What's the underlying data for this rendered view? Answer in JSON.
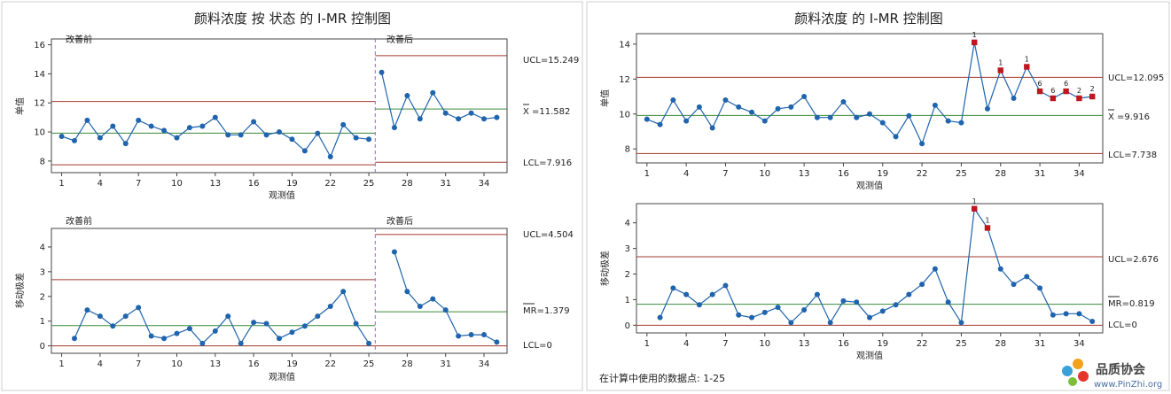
{
  "colors": {
    "series": "#1f64ad",
    "center": "#3a8a3a",
    "limit": "#a33a2e",
    "out": "#c0161c",
    "phase_divider": "#9966cc"
  },
  "left_figure": {
    "title": "颜料浓度 按 状态 的 I-MR 控制图",
    "phase_labels": [
      "改善前",
      "改善后"
    ],
    "x_ticks": [
      "1",
      "4",
      "7",
      "10",
      "13",
      "16",
      "19",
      "22",
      "25",
      "28",
      "31",
      "34"
    ],
    "xlabel": "观测值",
    "i_chart": {
      "ylabel": "单值",
      "y_ticks": [
        "8",
        "10",
        "12",
        "14",
        "16"
      ],
      "ucl_label": "UCL=15.249",
      "center_label": "X =11.582",
      "lcl_label": "LCL=7.916"
    },
    "mr_chart": {
      "ylabel": "移动极差",
      "y_ticks": [
        "0",
        "1",
        "2",
        "3",
        "4"
      ],
      "ucl_label": "UCL=4.504",
      "center_label": "MR=1.379",
      "lcl_label": "LCL=0"
    }
  },
  "right_figure": {
    "title": "颜料浓度 的 I-MR 控制图",
    "x_ticks": [
      "1",
      "4",
      "7",
      "10",
      "13",
      "16",
      "19",
      "22",
      "25",
      "28",
      "31",
      "34"
    ],
    "xlabel": "观测值",
    "i_chart": {
      "ylabel": "单值",
      "y_ticks": [
        "8",
        "10",
        "12",
        "14"
      ],
      "ucl_label": "UCL=12.095",
      "center_label": "X =9.916",
      "lcl_label": "LCL=7.738"
    },
    "mr_chart": {
      "ylabel": "移动极差",
      "y_ticks": [
        "0",
        "1",
        "2",
        "3",
        "4"
      ],
      "ucl_label": "UCL=2.676",
      "center_label": "MR=0.819",
      "lcl_label": "LCL=0"
    },
    "footnote": "在计算中使用的数据点: 1-25"
  },
  "watermark": {
    "text": "品质协会",
    "url": "www.PinZhi.org"
  },
  "chart_data": [
    {
      "type": "line",
      "title": "颜料浓度 按 状态 的 I-MR 控制图 — 单值",
      "xlabel": "观测值",
      "ylabel": "单值",
      "x": [
        1,
        2,
        3,
        4,
        5,
        6,
        7,
        8,
        9,
        10,
        11,
        12,
        13,
        14,
        15,
        16,
        17,
        18,
        19,
        20,
        21,
        22,
        23,
        24,
        25,
        26,
        27,
        28,
        29,
        30,
        31,
        32,
        33,
        34,
        35
      ],
      "values": [
        9.7,
        9.4,
        10.8,
        9.6,
        10.4,
        9.2,
        10.8,
        10.4,
        10.1,
        9.6,
        10.3,
        10.4,
        11.0,
        9.8,
        9.8,
        10.7,
        9.8,
        10.0,
        9.5,
        8.7,
        9.9,
        8.3,
        10.5,
        9.6,
        9.5,
        14.1,
        10.3,
        12.5,
        10.9,
        12.7,
        11.3,
        10.9,
        11.3,
        10.9,
        11.0
      ],
      "ylim": [
        7.2,
        16.4
      ],
      "phases": [
        {
          "name": "改善前",
          "from": 1,
          "to": 25,
          "ucl": 12.095,
          "center": 9.916,
          "lcl": 7.738
        },
        {
          "name": "改善后",
          "from": 26,
          "to": 35,
          "ucl": 15.249,
          "center": 11.582,
          "lcl": 7.916
        }
      ],
      "out_points": []
    },
    {
      "type": "line",
      "title": "颜料浓度 按 状态 的 I-MR 控制图 — 移动极差",
      "xlabel": "观测值",
      "ylabel": "移动极差",
      "x": [
        2,
        3,
        4,
        5,
        6,
        7,
        8,
        9,
        10,
        11,
        12,
        13,
        14,
        15,
        16,
        17,
        18,
        19,
        20,
        21,
        22,
        23,
        24,
        25,
        27,
        28,
        29,
        30,
        31,
        32,
        33,
        34,
        35
      ],
      "values": [
        0.3,
        1.45,
        1.2,
        0.8,
        1.2,
        1.55,
        0.4,
        0.3,
        0.5,
        0.7,
        0.1,
        0.6,
        1.2,
        0.1,
        0.95,
        0.9,
        0.3,
        0.55,
        0.8,
        1.2,
        1.6,
        2.2,
        0.9,
        0.1,
        3.8,
        2.2,
        1.6,
        1.9,
        1.45,
        0.4,
        0.45,
        0.45,
        0.15
      ],
      "ylim": [
        -0.3,
        4.75
      ],
      "phases": [
        {
          "name": "改善前",
          "from": 1,
          "to": 25,
          "ucl": 2.676,
          "center": 0.819,
          "lcl": 0
        },
        {
          "name": "改善后",
          "from": 26,
          "to": 35,
          "ucl": 4.504,
          "center": 1.379,
          "lcl": 0
        }
      ],
      "out_points": []
    },
    {
      "type": "line",
      "title": "颜料浓度 的 I-MR 控制图 — 单值",
      "xlabel": "观测值",
      "ylabel": "单值",
      "x": [
        1,
        2,
        3,
        4,
        5,
        6,
        7,
        8,
        9,
        10,
        11,
        12,
        13,
        14,
        15,
        16,
        17,
        18,
        19,
        20,
        21,
        22,
        23,
        24,
        25,
        26,
        27,
        28,
        29,
        30,
        31,
        32,
        33,
        34,
        35
      ],
      "values": [
        9.7,
        9.4,
        10.8,
        9.6,
        10.4,
        9.2,
        10.8,
        10.4,
        10.1,
        9.6,
        10.3,
        10.4,
        11.0,
        9.8,
        9.8,
        10.7,
        9.8,
        10.0,
        9.5,
        8.7,
        9.9,
        8.3,
        10.5,
        9.6,
        9.5,
        14.1,
        10.3,
        12.5,
        10.9,
        12.7,
        11.3,
        10.9,
        11.3,
        10.9,
        11.0
      ],
      "ylim": [
        7.2,
        14.6
      ],
      "phases": [
        {
          "name": "",
          "from": 1,
          "to": 35,
          "ucl": 12.095,
          "center": 9.916,
          "lcl": 7.738
        }
      ],
      "out_points": [
        {
          "x": 26,
          "label": "1"
        },
        {
          "x": 28,
          "label": "1"
        },
        {
          "x": 30,
          "label": "1"
        },
        {
          "x": 31,
          "label": "6"
        },
        {
          "x": 32,
          "label": "6"
        },
        {
          "x": 33,
          "label": "6"
        },
        {
          "x": 34,
          "label": "2"
        },
        {
          "x": 35,
          "label": "2"
        }
      ]
    },
    {
      "type": "line",
      "title": "颜料浓度 的 I-MR 控制图 — 移动极差",
      "xlabel": "观测值",
      "ylabel": "移动极差",
      "x": [
        2,
        3,
        4,
        5,
        6,
        7,
        8,
        9,
        10,
        11,
        12,
        13,
        14,
        15,
        16,
        17,
        18,
        19,
        20,
        21,
        22,
        23,
        24,
        25,
        26,
        27,
        28,
        29,
        30,
        31,
        32,
        33,
        34,
        35
      ],
      "values": [
        0.3,
        1.45,
        1.2,
        0.8,
        1.2,
        1.55,
        0.4,
        0.3,
        0.5,
        0.7,
        0.1,
        0.6,
        1.2,
        0.1,
        0.95,
        0.9,
        0.3,
        0.55,
        0.8,
        1.2,
        1.6,
        2.2,
        0.9,
        0.1,
        4.55,
        3.8,
        2.2,
        1.6,
        1.9,
        1.45,
        0.4,
        0.45,
        0.45,
        0.15
      ],
      "ylim": [
        -0.3,
        4.75
      ],
      "phases": [
        {
          "name": "",
          "from": 1,
          "to": 35,
          "ucl": 2.676,
          "center": 0.819,
          "lcl": 0
        }
      ],
      "out_points": [
        {
          "x": 26,
          "label": "1"
        },
        {
          "x": 27,
          "label": "1"
        }
      ]
    }
  ]
}
